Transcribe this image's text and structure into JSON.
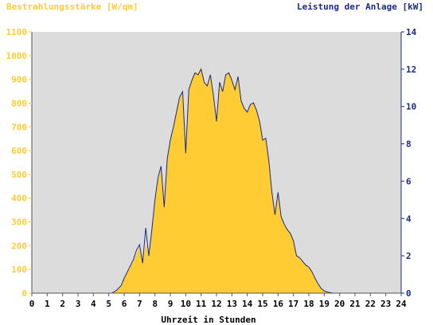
{
  "chart_data": {
    "type": "area",
    "title_left": "Bestrahlungsstärke [W/qm]",
    "title_right": "Leistung der Anlage [kW]",
    "xlabel": "Uhrzeit in Stunden",
    "x_ticks": [
      "0",
      "1",
      "2",
      "3",
      "4",
      "5",
      "6",
      "7",
      "8",
      "9",
      "10",
      "11",
      "12",
      "13",
      "14",
      "15",
      "16",
      "17",
      "18",
      "19",
      "20",
      "21",
      "22",
      "23",
      "24"
    ],
    "x_range": [
      0,
      24
    ],
    "y_left_ticks": [
      "0",
      "100",
      "200",
      "300",
      "400",
      "500",
      "600",
      "700",
      "800",
      "900",
      "1000",
      "1100"
    ],
    "y_left_range": [
      0,
      1100
    ],
    "y_right_ticks": [
      "0",
      "2",
      "4",
      "6",
      "8",
      "10",
      "12",
      "14"
    ],
    "y_right_range": [
      0,
      14
    ],
    "grid": false,
    "colors": {
      "irradiance_fill": "#ffcc33",
      "irradiance_axis": "#ffcc33",
      "power_line": "#1a2a8a",
      "power_axis": "#1a2a8a",
      "plot_background": "#dcdcdc"
    },
    "series": [
      {
        "kind": "area",
        "axis": "left",
        "x": [
          0,
          5.2,
          5.5,
          5.8,
          6.0,
          6.3,
          6.6,
          6.8,
          7.0,
          7.2,
          7.4,
          7.6,
          7.8,
          8.0,
          8.2,
          8.4,
          8.6,
          8.8,
          9.0,
          9.2,
          9.4,
          9.6,
          9.8,
          10.0,
          10.2,
          10.4,
          10.6,
          10.8,
          11.0,
          11.2,
          11.4,
          11.6,
          11.8,
          12.0,
          12.2,
          12.4,
          12.6,
          12.8,
          13.0,
          13.2,
          13.4,
          13.6,
          13.8,
          14.0,
          14.2,
          14.4,
          14.6,
          14.8,
          15.0,
          15.2,
          15.4,
          15.6,
          15.8,
          16.0,
          16.2,
          16.4,
          16.6,
          16.8,
          17.0,
          17.2,
          17.4,
          17.6,
          17.8,
          18.0,
          18.2,
          18.4,
          18.6,
          18.8,
          19.0,
          19.3,
          19.6,
          19.9,
          20.2,
          20.5,
          24
        ],
        "values": [
          0,
          0,
          10,
          30,
          60,
          100,
          130,
          160,
          190,
          120,
          200,
          150,
          260,
          380,
          470,
          520,
          360,
          560,
          640,
          700,
          760,
          820,
          840,
          590,
          860,
          900,
          930,
          920,
          950,
          890,
          870,
          920,
          830,
          720,
          890,
          850,
          920,
          930,
          900,
          860,
          910,
          810,
          780,
          760,
          790,
          800,
          770,
          720,
          640,
          650,
          560,
          420,
          330,
          420,
          320,
          290,
          270,
          250,
          220,
          160,
          150,
          130,
          120,
          110,
          90,
          60,
          40,
          20,
          10,
          3,
          0,
          0,
          0,
          0,
          0
        ]
      },
      {
        "kind": "line",
        "axis": "right",
        "x": [
          0,
          5.2,
          5.5,
          5.8,
          6.0,
          6.3,
          6.6,
          6.8,
          7.0,
          7.2,
          7.4,
          7.6,
          7.8,
          8.0,
          8.2,
          8.4,
          8.6,
          8.8,
          9.0,
          9.2,
          9.4,
          9.6,
          9.8,
          10.0,
          10.2,
          10.4,
          10.6,
          10.8,
          11.0,
          11.2,
          11.4,
          11.6,
          11.8,
          12.0,
          12.2,
          12.4,
          12.6,
          12.8,
          13.0,
          13.2,
          13.4,
          13.6,
          13.8,
          14.0,
          14.2,
          14.4,
          14.6,
          14.8,
          15.0,
          15.2,
          15.4,
          15.6,
          15.8,
          16.0,
          16.2,
          16.4,
          16.6,
          16.8,
          17.0,
          17.2,
          17.4,
          17.6,
          17.8,
          18.0,
          18.2,
          18.4,
          18.6,
          18.8,
          19.0,
          19.3,
          19.6,
          19.9,
          20.2,
          20.5,
          24
        ],
        "values": [
          0,
          0,
          0.15,
          0.4,
          0.8,
          1.3,
          1.8,
          2.3,
          2.6,
          1.6,
          3.5,
          2.0,
          3.4,
          5.0,
          6.2,
          6.8,
          4.6,
          7.2,
          8.2,
          8.9,
          9.7,
          10.5,
          10.8,
          7.5,
          10.9,
          11.4,
          11.8,
          11.7,
          12.0,
          11.3,
          11.1,
          11.7,
          10.6,
          9.2,
          11.3,
          10.8,
          11.7,
          11.8,
          11.4,
          10.9,
          11.6,
          10.3,
          9.9,
          9.7,
          10.1,
          10.2,
          9.8,
          9.2,
          8.2,
          8.3,
          7.1,
          5.4,
          4.2,
          5.4,
          4.1,
          3.7,
          3.4,
          3.2,
          2.8,
          2.0,
          1.9,
          1.7,
          1.5,
          1.4,
          1.15,
          0.8,
          0.5,
          0.25,
          0.12,
          0.04,
          0,
          0,
          0,
          0,
          0
        ]
      }
    ]
  }
}
